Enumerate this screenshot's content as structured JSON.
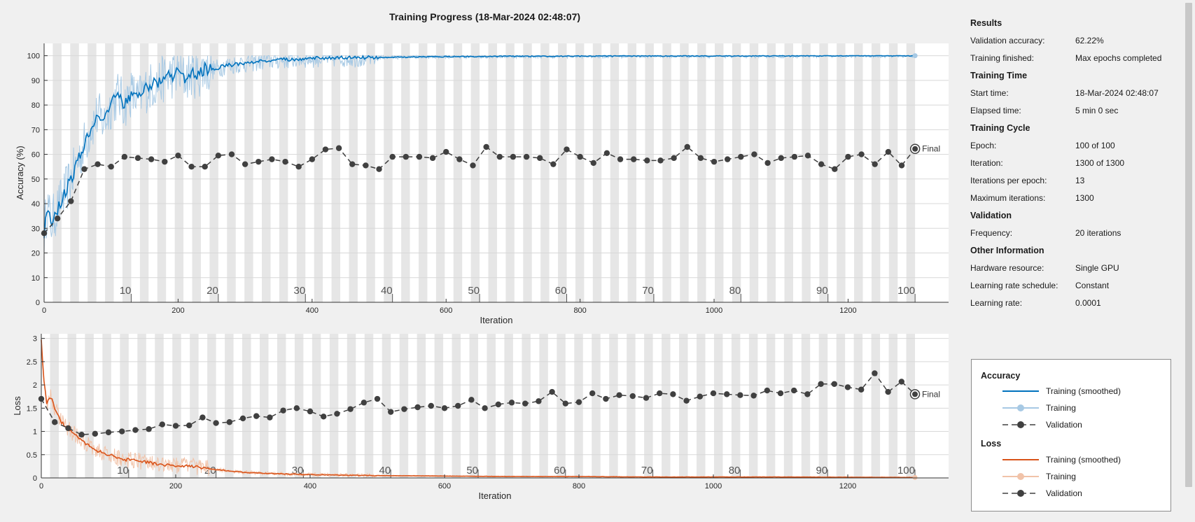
{
  "window": {
    "title": "Training Progress (18-Mar-2024 02:48:07)"
  },
  "colors": {
    "training_smoothed_acc": "#0072bd",
    "training_raw_acc": "#a7c9e4",
    "training_smoothed_loss": "#d95319",
    "training_raw_loss": "#f1c3a9",
    "validation": "#404040",
    "epoch_band": "#e6e6e6",
    "plot_bg": "#ffffff"
  },
  "chart_data": [
    {
      "type": "line",
      "name": "accuracy",
      "xlabel": "Iteration",
      "ylabel": "Accuracy (%)",
      "xlim": [
        0,
        1350
      ],
      "ylim": [
        0,
        105
      ],
      "xticks": [
        0,
        200,
        400,
        600,
        800,
        1000,
        1200
      ],
      "yticks": [
        0,
        10,
        20,
        30,
        40,
        50,
        60,
        70,
        80,
        90,
        100
      ],
      "iterations_per_epoch": 13,
      "epoch_labels": [
        10,
        20,
        30,
        40,
        50,
        60,
        70,
        80,
        90,
        100
      ],
      "final_label": "Final",
      "smoothed_curve": {
        "x": [
          0,
          5,
          10,
          15,
          20,
          30,
          40,
          50,
          60,
          70,
          80,
          90,
          100,
          110,
          120,
          130,
          140,
          150,
          160,
          170,
          180,
          190,
          200,
          210,
          220,
          230,
          240,
          250,
          270,
          300,
          330,
          360,
          400,
          450,
          500,
          550,
          600,
          650,
          700,
          800,
          900,
          1000,
          1100,
          1200,
          1300
        ],
        "y": [
          28,
          40,
          32,
          35,
          38,
          44,
          50,
          57,
          64,
          71,
          76,
          73,
          80,
          84,
          80,
          85,
          82,
          86,
          88,
          89,
          91,
          92,
          93,
          91,
          93,
          92,
          95,
          94,
          96,
          97,
          98,
          98.5,
          99,
          99.2,
          99.3,
          99.5,
          99.6,
          99.7,
          99.8,
          99.8,
          99.9,
          99.9,
          99.9,
          100,
          100
        ]
      },
      "validation": {
        "x": [
          0,
          20,
          40,
          60,
          80,
          100,
          120,
          140,
          160,
          180,
          200,
          220,
          240,
          260,
          280,
          300,
          320,
          340,
          360,
          380,
          400,
          420,
          440,
          460,
          480,
          500,
          520,
          540,
          560,
          580,
          600,
          620,
          640,
          660,
          680,
          700,
          720,
          740,
          760,
          780,
          800,
          820,
          840,
          860,
          880,
          900,
          920,
          940,
          960,
          980,
          1000,
          1020,
          1040,
          1060,
          1080,
          1100,
          1120,
          1140,
          1160,
          1180,
          1200,
          1220,
          1240,
          1260,
          1280,
          1300
        ],
        "y": [
          28,
          34,
          41,
          54,
          56,
          55,
          59,
          58.5,
          58,
          57,
          59.5,
          55,
          55,
          59.5,
          60,
          56,
          57,
          58,
          57,
          55,
          58,
          62,
          62.5,
          56,
          55.5,
          54,
          59,
          59,
          59,
          58.5,
          61,
          58,
          55.5,
          63,
          59,
          59,
          59,
          58.5,
          56,
          62,
          59,
          56.5,
          60.5,
          58,
          58,
          57.5,
          57.5,
          58.5,
          63,
          58.5,
          57,
          58,
          59,
          60,
          56.5,
          58.5,
          59,
          59.5,
          56,
          54,
          59,
          60,
          56,
          61,
          55.5,
          62.22
        ]
      }
    },
    {
      "type": "line",
      "name": "loss",
      "xlabel": "Iteration",
      "ylabel": "Loss",
      "xlim": [
        0,
        1350
      ],
      "ylim": [
        0,
        3.1
      ],
      "xticks": [
        0,
        200,
        400,
        600,
        800,
        1000,
        1200
      ],
      "yticks": [
        0,
        0.5,
        1,
        1.5,
        2,
        2.5,
        3
      ],
      "iterations_per_epoch": 13,
      "epoch_labels": [
        10,
        20,
        30,
        40,
        50,
        60,
        70,
        80,
        90,
        100
      ],
      "final_label": "Final",
      "smoothed_curve": {
        "x": [
          0,
          3,
          8,
          15,
          20,
          30,
          40,
          60,
          80,
          100,
          120,
          140,
          160,
          180,
          200,
          220,
          240,
          260,
          280,
          300,
          350,
          400,
          500,
          600,
          700,
          800,
          900,
          1000,
          1100,
          1200,
          1300
        ],
        "y": [
          3.0,
          2.2,
          1.6,
          1.75,
          1.5,
          1.2,
          1.05,
          0.8,
          0.6,
          0.5,
          0.4,
          0.38,
          0.33,
          0.28,
          0.26,
          0.25,
          0.22,
          0.18,
          0.15,
          0.12,
          0.09,
          0.07,
          0.05,
          0.04,
          0.03,
          0.03,
          0.02,
          0.02,
          0.02,
          0.015,
          0.01
        ]
      },
      "validation": {
        "x": [
          0,
          20,
          40,
          60,
          80,
          100,
          120,
          140,
          160,
          180,
          200,
          220,
          240,
          260,
          280,
          300,
          320,
          340,
          360,
          380,
          400,
          420,
          440,
          460,
          480,
          500,
          520,
          540,
          560,
          580,
          600,
          620,
          640,
          660,
          680,
          700,
          720,
          740,
          760,
          780,
          800,
          820,
          840,
          860,
          880,
          900,
          920,
          940,
          960,
          980,
          1000,
          1020,
          1040,
          1060,
          1080,
          1100,
          1120,
          1140,
          1160,
          1180,
          1200,
          1220,
          1240,
          1260,
          1280,
          1300
        ],
        "y": [
          1.7,
          1.2,
          1.07,
          0.93,
          0.95,
          0.98,
          1.0,
          1.03,
          1.05,
          1.15,
          1.12,
          1.13,
          1.3,
          1.18,
          1.2,
          1.28,
          1.33,
          1.3,
          1.45,
          1.5,
          1.43,
          1.32,
          1.38,
          1.48,
          1.62,
          1.7,
          1.42,
          1.48,
          1.52,
          1.55,
          1.5,
          1.55,
          1.68,
          1.5,
          1.58,
          1.62,
          1.6,
          1.65,
          1.85,
          1.6,
          1.63,
          1.82,
          1.7,
          1.78,
          1.76,
          1.72,
          1.82,
          1.8,
          1.66,
          1.75,
          1.82,
          1.8,
          1.78,
          1.77,
          1.88,
          1.82,
          1.88,
          1.8,
          2.02,
          2.02,
          1.95,
          1.9,
          2.25,
          1.85,
          2.07,
          1.8
        ]
      }
    }
  ],
  "panel": {
    "results_title": "Results",
    "val_acc_label": "Validation accuracy:",
    "val_acc_value": "62.22%",
    "train_finished_label": "Training finished:",
    "train_finished_value": "Max epochs completed",
    "time_title": "Training Time",
    "start_label": "Start time:",
    "start_value": "18-Mar-2024 02:48:07",
    "elapsed_label": "Elapsed time:",
    "elapsed_value": "5 min 0 sec",
    "cycle_title": "Training Cycle",
    "epoch_label": "Epoch:",
    "epoch_value": "100 of 100",
    "iter_label": "Iteration:",
    "iter_value": "1300 of 1300",
    "ipe_label": "Iterations per epoch:",
    "ipe_value": "13",
    "maxiter_label": "Maximum iterations:",
    "maxiter_value": "1300",
    "validation_title": "Validation",
    "freq_label": "Frequency:",
    "freq_value": "20 iterations",
    "other_title": "Other Information",
    "hw_label": "Hardware resource:",
    "hw_value": "Single GPU",
    "lrs_label": "Learning rate schedule:",
    "lrs_value": "Constant",
    "lr_label": "Learning rate:",
    "lr_value": "0.0001"
  },
  "legend": {
    "accuracy_title": "Accuracy",
    "loss_title": "Loss",
    "smoothed": "Training (smoothed)",
    "training": "Training",
    "validation": "Validation"
  }
}
